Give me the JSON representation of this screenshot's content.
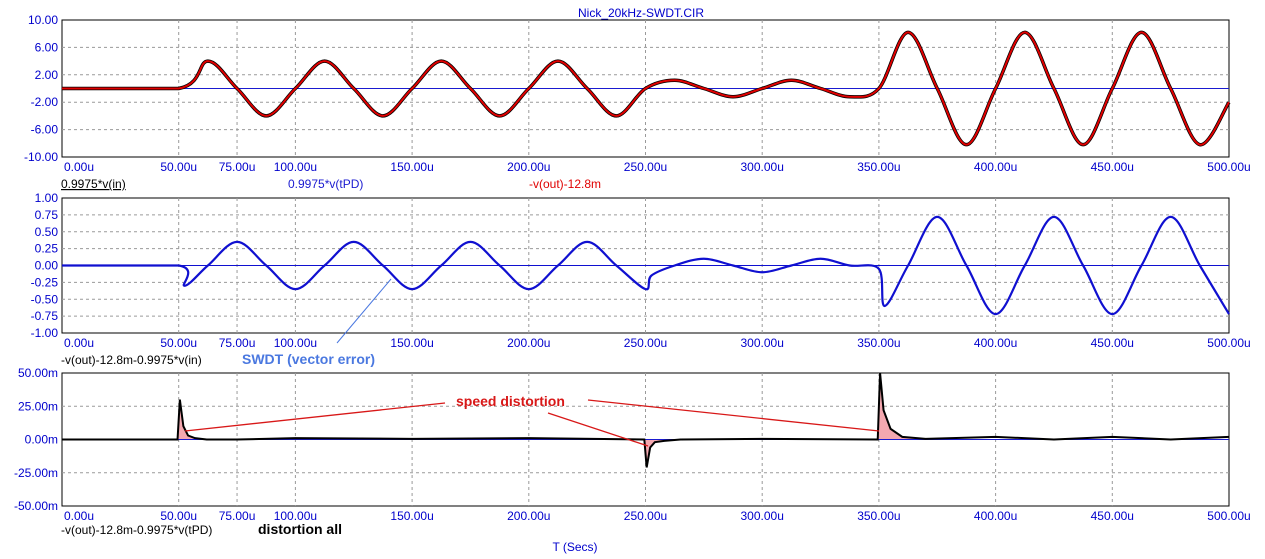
{
  "title": "Nick_20kHz-SWDT.CIR",
  "xlabel": "T (Secs)",
  "colors": {
    "axis_text": "#0000cc",
    "title": "#0000cc",
    "trace_in": "#000000",
    "trace_tpd": "#1a1ad0",
    "trace_out": "#e00000",
    "trace_err": "#1010d0",
    "trace_dist": "#000000",
    "dist_fill": "#f4a8b0",
    "annot_red": "#d81818",
    "annot_blue": "#4a78e0",
    "grid": "#9a9a9a"
  },
  "chart_data": [
    {
      "type": "line",
      "title": "",
      "xlim": [
        0,
        500
      ],
      "xunit": "u",
      "ylim": [
        -10,
        10
      ],
      "xticks": [
        "0.00u",
        "50.00u",
        "75.00u",
        "100.00u",
        "150.00u",
        "200.00u",
        "250.00u",
        "300.00u",
        "350.00u",
        "400.00u",
        "450.00u",
        "500.00u"
      ],
      "yticks": [
        "10.00",
        "6.00",
        "2.00",
        "-2.00",
        "-6.00",
        "-10.00"
      ],
      "legend": [
        "0.9975*v(in)",
        "0.9975*v(tPD)",
        "-v(out)-12.8m"
      ],
      "series": [
        {
          "name": "-v(out)-12.8m",
          "x": [
            0,
            50,
            62.5,
            75,
            87.5,
            100,
            112.5,
            125,
            137.5,
            150,
            162.5,
            175,
            187.5,
            200,
            212.5,
            225,
            237.5,
            250,
            262.5,
            275,
            287.5,
            300,
            312.5,
            325,
            337.5,
            350,
            362.5,
            375,
            387.5,
            400,
            412.5,
            425,
            437.5,
            450,
            462.5,
            475,
            487.5,
            500
          ],
          "y": [
            0,
            0,
            4,
            0,
            -4,
            0,
            4,
            0,
            -4,
            0,
            4,
            0,
            -4,
            0,
            4,
            0,
            -4,
            0,
            1.2,
            0,
            -1.2,
            0,
            1.2,
            0,
            -1.2,
            0,
            8.2,
            0,
            -8.2,
            0,
            8.2,
            0,
            -8.2,
            0,
            8.2,
            0,
            -8.2,
            -2
          ]
        },
        {
          "name": "0.9975*v(tPD)",
          "x": [
            0,
            500
          ],
          "y": [
            0,
            0
          ]
        }
      ]
    },
    {
      "type": "line",
      "xlim": [
        0,
        500
      ],
      "ylim": [
        -1,
        1
      ],
      "xticks": [
        "0.00u",
        "50.00u",
        "75.00u",
        "100.00u",
        "150.00u",
        "200.00u",
        "250.00u",
        "300.00u",
        "350.00u",
        "400.00u",
        "450.00u",
        "500.00u"
      ],
      "yticks": [
        "1.00",
        "0.75",
        "0.50",
        "0.25",
        "0.00",
        "-0.25",
        "-0.50",
        "-0.75",
        "-1.00"
      ],
      "legend": [
        "-v(out)-12.8m-0.9975*v(in)"
      ],
      "annotation": "SWDT (vector error)",
      "series": [
        {
          "name": "-v(out)-12.8m-0.9975*v(in)",
          "x": [
            0,
            50,
            52.5,
            62.5,
            75,
            87.5,
            100,
            112.5,
            125,
            137.5,
            150,
            162.5,
            175,
            187.5,
            200,
            212.5,
            225,
            237.5,
            250,
            252.5,
            262.5,
            275,
            287.5,
            300,
            312.5,
            325,
            337.5,
            350,
            352.5,
            362.5,
            375,
            387.5,
            400,
            412.5,
            425,
            437.5,
            450,
            462.5,
            475,
            487.5,
            500
          ],
          "y": [
            0,
            0,
            -0.3,
            0,
            0.35,
            0,
            -0.35,
            0,
            0.35,
            0,
            -0.35,
            0,
            0.35,
            0,
            -0.35,
            0,
            0.35,
            0,
            -0.35,
            -0.15,
            0,
            0.1,
            0,
            -0.1,
            0,
            0.1,
            0,
            -0.05,
            -0.6,
            0,
            0.72,
            0,
            -0.72,
            0,
            0.72,
            0,
            -0.72,
            0,
            0.72,
            0,
            -0.72
          ]
        }
      ]
    },
    {
      "type": "line",
      "xlim": [
        0,
        500
      ],
      "ylim": [
        -50,
        50
      ],
      "xticks": [
        "0.00u",
        "50.00u",
        "75.00u",
        "100.00u",
        "150.00u",
        "200.00u",
        "250.00u",
        "300.00u",
        "350.00u",
        "400.00u",
        "450.00u",
        "500.00u"
      ],
      "yticks": [
        "50.00m",
        "25.00m",
        "0.00m",
        "-25.00m",
        "-50.00m"
      ],
      "legend": [
        "-v(out)-12.8m-0.9975*v(tPD)"
      ],
      "annotation_a": "distortion all",
      "annotation_b": "speed distortion",
      "series": [
        {
          "name": "-v(out)-12.8m-0.9975*v(tPD)",
          "x": [
            0,
            49.5,
            50.5,
            52,
            54,
            57,
            62,
            75,
            100,
            150,
            200,
            249.5,
            250.5,
            252,
            254,
            258,
            265,
            300,
            349.5,
            350.5,
            352,
            355,
            360,
            370,
            400,
            425,
            450,
            475,
            500
          ],
          "y": [
            0,
            0,
            30,
            10,
            3,
            1,
            0,
            0,
            1,
            0.5,
            1,
            0,
            -21,
            -6,
            -2,
            -1,
            0,
            0.5,
            0,
            50,
            22,
            8,
            2,
            0.5,
            2,
            0,
            2,
            0,
            2
          ]
        }
      ]
    }
  ]
}
